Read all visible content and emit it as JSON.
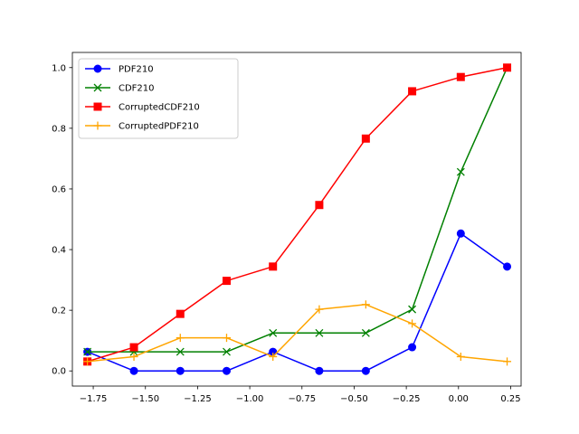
{
  "chart_data": {
    "type": "line",
    "title": "",
    "xlabel": "",
    "ylabel": "",
    "xlim": [
      -1.85,
      0.3
    ],
    "ylim": [
      -0.05,
      1.05
    ],
    "xticks": [
      -1.75,
      -1.5,
      -1.25,
      -1.0,
      -0.75,
      -0.5,
      -0.25,
      0.0,
      0.25
    ],
    "xtick_labels": [
      "−1.75",
      "−1.50",
      "−1.25",
      "−1.00",
      "−0.75",
      "−0.50",
      "−0.25",
      "0.00",
      "0.25"
    ],
    "yticks": [
      0.0,
      0.2,
      0.4,
      0.6,
      0.8,
      1.0
    ],
    "ytick_labels": [
      "0.0",
      "0.2",
      "0.4",
      "0.6",
      "0.8",
      "1.0"
    ],
    "grid": false,
    "legend_position": "top-left",
    "x": [
      -1.778,
      -1.555,
      -1.333,
      -1.111,
      -0.889,
      -0.667,
      -0.444,
      -0.222,
      0.011,
      0.233
    ],
    "series": [
      {
        "name": "PDF210",
        "color": "#0000ff",
        "marker": "circle",
        "values": [
          0.063,
          0.0,
          0.0,
          0.0,
          0.063,
          0.0,
          0.0,
          0.078,
          0.453,
          0.344
        ]
      },
      {
        "name": "CDF210",
        "color": "#008000",
        "marker": "x",
        "values": [
          0.063,
          0.063,
          0.063,
          0.063,
          0.125,
          0.125,
          0.125,
          0.203,
          0.656,
          1.0
        ]
      },
      {
        "name": "CorruptedCDF210",
        "color": "#ff0000",
        "marker": "square",
        "values": [
          0.031,
          0.078,
          0.188,
          0.297,
          0.344,
          0.547,
          0.766,
          0.922,
          0.969,
          1.0
        ]
      },
      {
        "name": "CorruptedPDF210",
        "color": "#ffa500",
        "marker": "plus",
        "values": [
          0.031,
          0.047,
          0.109,
          0.109,
          0.047,
          0.203,
          0.219,
          0.156,
          0.047,
          0.031
        ]
      }
    ]
  }
}
